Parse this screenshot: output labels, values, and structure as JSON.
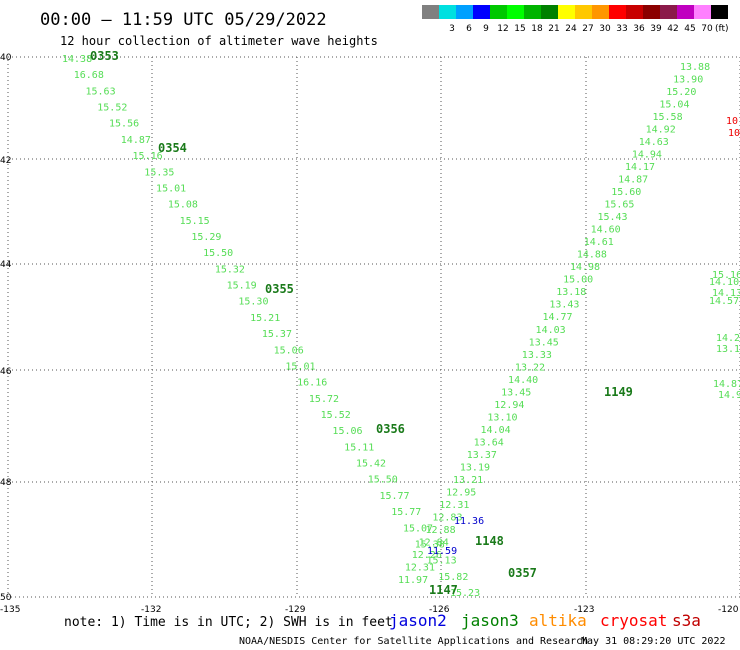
{
  "header": {
    "title": "00:00 – 11:59 UTC 05/29/2022",
    "subtitle": "12 hour collection of altimeter wave heights"
  },
  "legend": {
    "unit": "(ft)",
    "bins": [
      {
        "label": "",
        "color": "#808080"
      },
      {
        "label": "3",
        "color": "#00e0e0"
      },
      {
        "label": "6",
        "color": "#00a0ff"
      },
      {
        "label": "9",
        "color": "#0000ff"
      },
      {
        "label": "12",
        "color": "#00c800"
      },
      {
        "label": "15",
        "color": "#00ff00"
      },
      {
        "label": "18",
        "color": "#00b400"
      },
      {
        "label": "21",
        "color": "#008000"
      },
      {
        "label": "24",
        "color": "#ffff00"
      },
      {
        "label": "27",
        "color": "#ffc800"
      },
      {
        "label": "30",
        "color": "#ff9600"
      },
      {
        "label": "33",
        "color": "#ff0000"
      },
      {
        "label": "36",
        "color": "#c80000"
      },
      {
        "label": "39",
        "color": "#8b0000"
      },
      {
        "label": "42",
        "color": "#8b1a4a"
      },
      {
        "label": "45",
        "color": "#c000c0"
      },
      {
        "label": "70",
        "color": "#ff80ff"
      },
      {
        "label": "",
        "color": "#000000"
      }
    ]
  },
  "axes": {
    "y_labels": [
      "40",
      "42",
      "44",
      "46",
      "48",
      "50"
    ],
    "x_labels": [
      "-135",
      "-132",
      "-129",
      "-126",
      "-123",
      "-120"
    ]
  },
  "footer": {
    "note": "note:  1) Time is in UTC;  2) SWH is in feet",
    "satellites": [
      {
        "name": "jason2",
        "color": "#0000dd"
      },
      {
        "name": "jason3",
        "color": "#008000"
      },
      {
        "name": "altika",
        "color": "#ff8c00"
      },
      {
        "name": "cryosat",
        "color": "#ff0000"
      },
      {
        "name": "s3a",
        "color": "#c00000"
      }
    ],
    "credit": "NOAA/NESDIS Center for Satellite Applications and Research",
    "generated": "May 31 08:29:20 UTC 2022"
  },
  "time_labels": [
    "0353",
    "0354",
    "0355",
    "0356",
    "0357",
    "1147",
    "1148",
    "1149"
  ],
  "observations": [
    "14.38",
    "16.68",
    "15.63",
    "15.52",
    "15.56",
    "14.87",
    "15.16",
    "15.35",
    "15.01",
    "15.08",
    "15.15",
    "15.29",
    "15.50",
    "15.32",
    "15.19",
    "15.30",
    "15.21",
    "15.37",
    "15.06",
    "15.01",
    "16.16",
    "15.72",
    "15.52",
    "15.06",
    "15.11",
    "15.42",
    "15.50",
    "15.77",
    "15.77",
    "15.07",
    "15.38",
    "15.13",
    "15.82",
    "15.23",
    "11.97",
    "12.31",
    "12.26",
    "12.84",
    "12.88",
    "12.83",
    "12.31",
    "12.95",
    "13.21",
    "13.19",
    "13.37",
    "13.64",
    "14.04",
    "13.10",
    "12.94",
    "13.45",
    "14.40",
    "13.22",
    "13.33",
    "13.45",
    "14.03",
    "14.77",
    "13.43",
    "13.18",
    "15.00",
    "14.98",
    "14.88",
    "14.61",
    "14.60",
    "15.43",
    "15.65",
    "15.60",
    "14.87",
    "14.17",
    "14.94",
    "14.63",
    "14.92",
    "15.58",
    "15.04",
    "15.20",
    "13.90",
    "13.88",
    "11.36",
    "11.59",
    "14.87",
    "14.95",
    "14.10",
    "14.57",
    "15.16",
    "14.13",
    "14.28",
    "13.15",
    "10",
    "10"
  ],
  "colors": {
    "light_green": "#55dd55",
    "dark_green": "#1a7a1a",
    "grid": "#555555",
    "blue": "#0000cc",
    "red": "#ee0000"
  }
}
